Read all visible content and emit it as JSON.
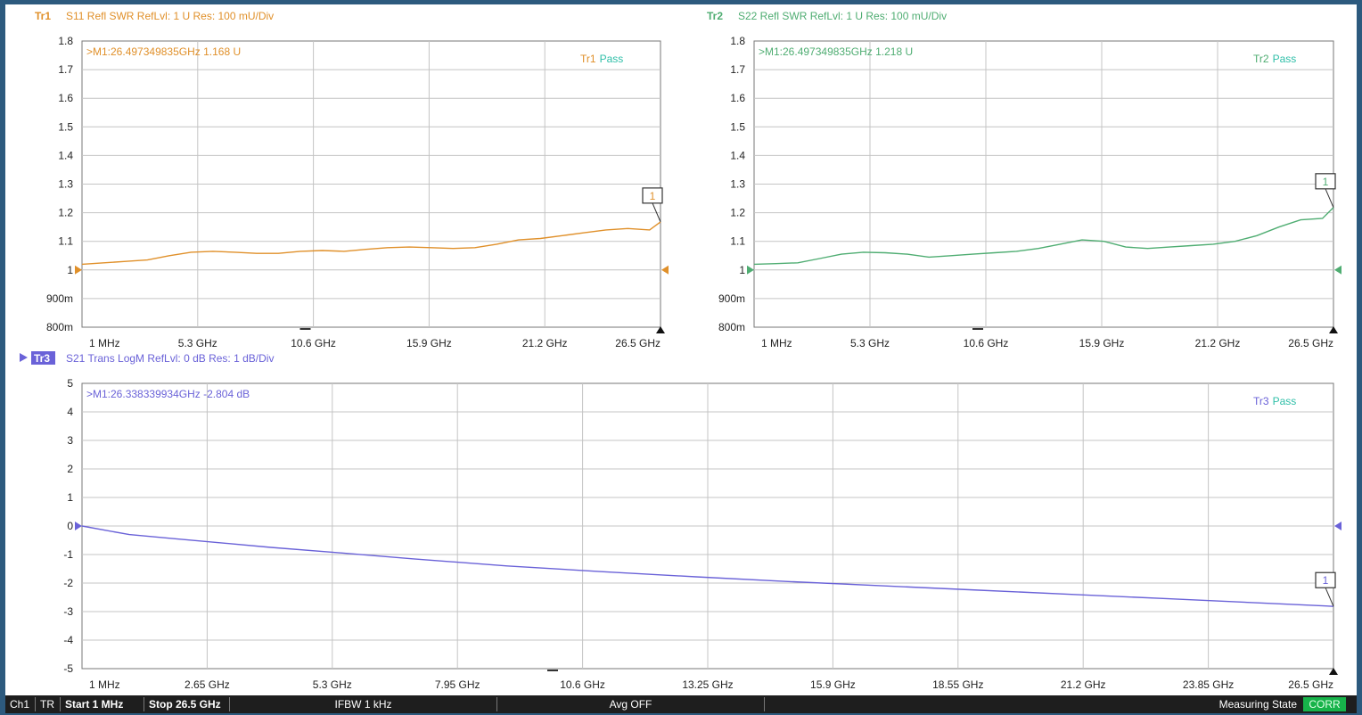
{
  "colors": {
    "tr1": "#e0902a",
    "tr2": "#4fad72",
    "tr3": "#6a62d8",
    "grid": "#c4c4c4",
    "frame": "#777777"
  },
  "chart_data": [
    {
      "type": "line",
      "trace": "Tr1",
      "header": "S11 Refl SWR RefLvl: 1  U Res: 100 mU/Div",
      "marker_readout": ">M1:26.497349835GHz  1.168  U",
      "marker_label": "1",
      "limit_trace": "Tr1",
      "limit_status": "Pass",
      "x_ticks": [
        "1 MHz",
        "5.3 GHz",
        "10.6 GHz",
        "15.9 GHz",
        "21.2 GHz",
        "26.5 GHz"
      ],
      "y_ticks": [
        "1.8",
        "1.7",
        "1.6",
        "1.5",
        "1.4",
        "1.3",
        "1.2",
        "1.1",
        "1",
        "900m",
        "800m"
      ],
      "xlim": [
        0.001,
        26.5
      ],
      "ylim": [
        0.8,
        1.8
      ],
      "ref_level": 1,
      "x": [
        0.001,
        1,
        2,
        3,
        4,
        5,
        6,
        7,
        8,
        9,
        10,
        11,
        12,
        13,
        14,
        15,
        16,
        17,
        18,
        19,
        20,
        21,
        22,
        23,
        24,
        25,
        26,
        26.5
      ],
      "y": [
        1.02,
        1.025,
        1.03,
        1.035,
        1.05,
        1.062,
        1.065,
        1.062,
        1.058,
        1.058,
        1.065,
        1.068,
        1.065,
        1.072,
        1.078,
        1.08,
        1.078,
        1.075,
        1.078,
        1.09,
        1.105,
        1.11,
        1.12,
        1.13,
        1.14,
        1.145,
        1.14,
        1.168
      ]
    },
    {
      "type": "line",
      "trace": "Tr2",
      "header": "S22 Refl SWR RefLvl: 1  U Res: 100 mU/Div",
      "marker_readout": ">M1:26.497349835GHz  1.218  U",
      "marker_label": "1",
      "limit_trace": "Tr2",
      "limit_status": "Pass",
      "x_ticks": [
        "1 MHz",
        "5.3 GHz",
        "10.6 GHz",
        "15.9 GHz",
        "21.2 GHz",
        "26.5 GHz"
      ],
      "y_ticks": [
        "1.8",
        "1.7",
        "1.6",
        "1.5",
        "1.4",
        "1.3",
        "1.2",
        "1.1",
        "1",
        "900m",
        "800m"
      ],
      "xlim": [
        0.001,
        26.5
      ],
      "ylim": [
        0.8,
        1.8
      ],
      "ref_level": 1,
      "x": [
        0.001,
        1,
        2,
        3,
        4,
        5,
        6,
        7,
        8,
        9,
        10,
        11,
        12,
        13,
        14,
        15,
        16,
        17,
        18,
        19,
        20,
        21,
        22,
        23,
        24,
        25,
        26,
        26.5
      ],
      "y": [
        1.02,
        1.022,
        1.025,
        1.04,
        1.055,
        1.062,
        1.06,
        1.055,
        1.045,
        1.05,
        1.055,
        1.06,
        1.065,
        1.075,
        1.09,
        1.105,
        1.1,
        1.08,
        1.075,
        1.08,
        1.085,
        1.09,
        1.1,
        1.12,
        1.15,
        1.175,
        1.18,
        1.218
      ]
    },
    {
      "type": "line",
      "trace": "Tr3",
      "header": "S21 Trans LogM RefLvl: 0  dB Res: 1  dB/Div",
      "marker_readout": ">M1:26.338339934GHz  -2.804  dB",
      "marker_label": "1",
      "limit_trace": "Tr3",
      "limit_status": "Pass",
      "x_ticks": [
        "1 MHz",
        "2.65 GHz",
        "5.3 GHz",
        "7.95 GHz",
        "10.6 GHz",
        "13.25 GHz",
        "15.9 GHz",
        "18.55 GHz",
        "21.2 GHz",
        "23.85 GHz",
        "26.5 GHz"
      ],
      "y_ticks": [
        "5",
        "4",
        "3",
        "2",
        "1",
        "0",
        "-1",
        "-2",
        "-3",
        "-4",
        "-5"
      ],
      "xlim": [
        0.001,
        26.5
      ],
      "ylim": [
        -5,
        5
      ],
      "ref_level": 0,
      "x": [
        0.001,
        1,
        2,
        3,
        4,
        5.3,
        7,
        9,
        11,
        13,
        15,
        17,
        19,
        21,
        23,
        25,
        26.34,
        26.5
      ],
      "y": [
        0,
        -0.3,
        -0.45,
        -0.6,
        -0.75,
        -0.92,
        -1.15,
        -1.4,
        -1.6,
        -1.78,
        -1.95,
        -2.1,
        -2.25,
        -2.4,
        -2.55,
        -2.7,
        -2.804,
        -2.82
      ]
    }
  ],
  "status": {
    "ch": "Ch1",
    "tr": "TR",
    "start": "Start 1 MHz",
    "stop": "Stop 26.5 GHz",
    "ifbw": "IFBW 1 kHz",
    "avg": "Avg OFF",
    "state": "Measuring State",
    "corr": "CORR"
  }
}
